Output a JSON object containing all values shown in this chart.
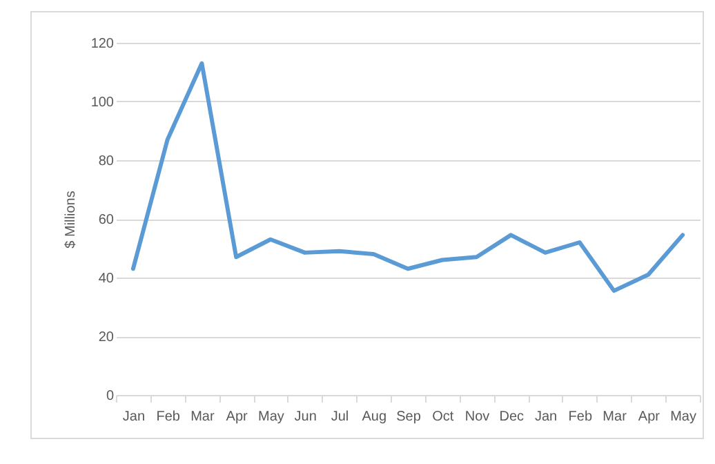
{
  "chart_data": {
    "type": "line",
    "ylabel": "$ Millions",
    "categories": [
      "Jan",
      "Feb",
      "Mar",
      "Apr",
      "May",
      "Jun",
      "Jul",
      "Aug",
      "Sep",
      "Oct",
      "Nov",
      "Dec",
      "Jan",
      "Feb",
      "Mar",
      "Apr",
      "May"
    ],
    "series": [
      {
        "color": "#5b9bd5",
        "values": [
          43,
          87,
          113,
          47,
          53,
          48.5,
          49,
          48,
          43,
          46,
          47,
          54.5,
          48.5,
          52,
          35.5,
          41,
          54.5
        ]
      }
    ],
    "ylim": [
      0,
      120
    ],
    "yticks": [
      0,
      20,
      40,
      60,
      80,
      100,
      120
    ],
    "grid": "y",
    "marker": "none",
    "line_style": "solid"
  }
}
